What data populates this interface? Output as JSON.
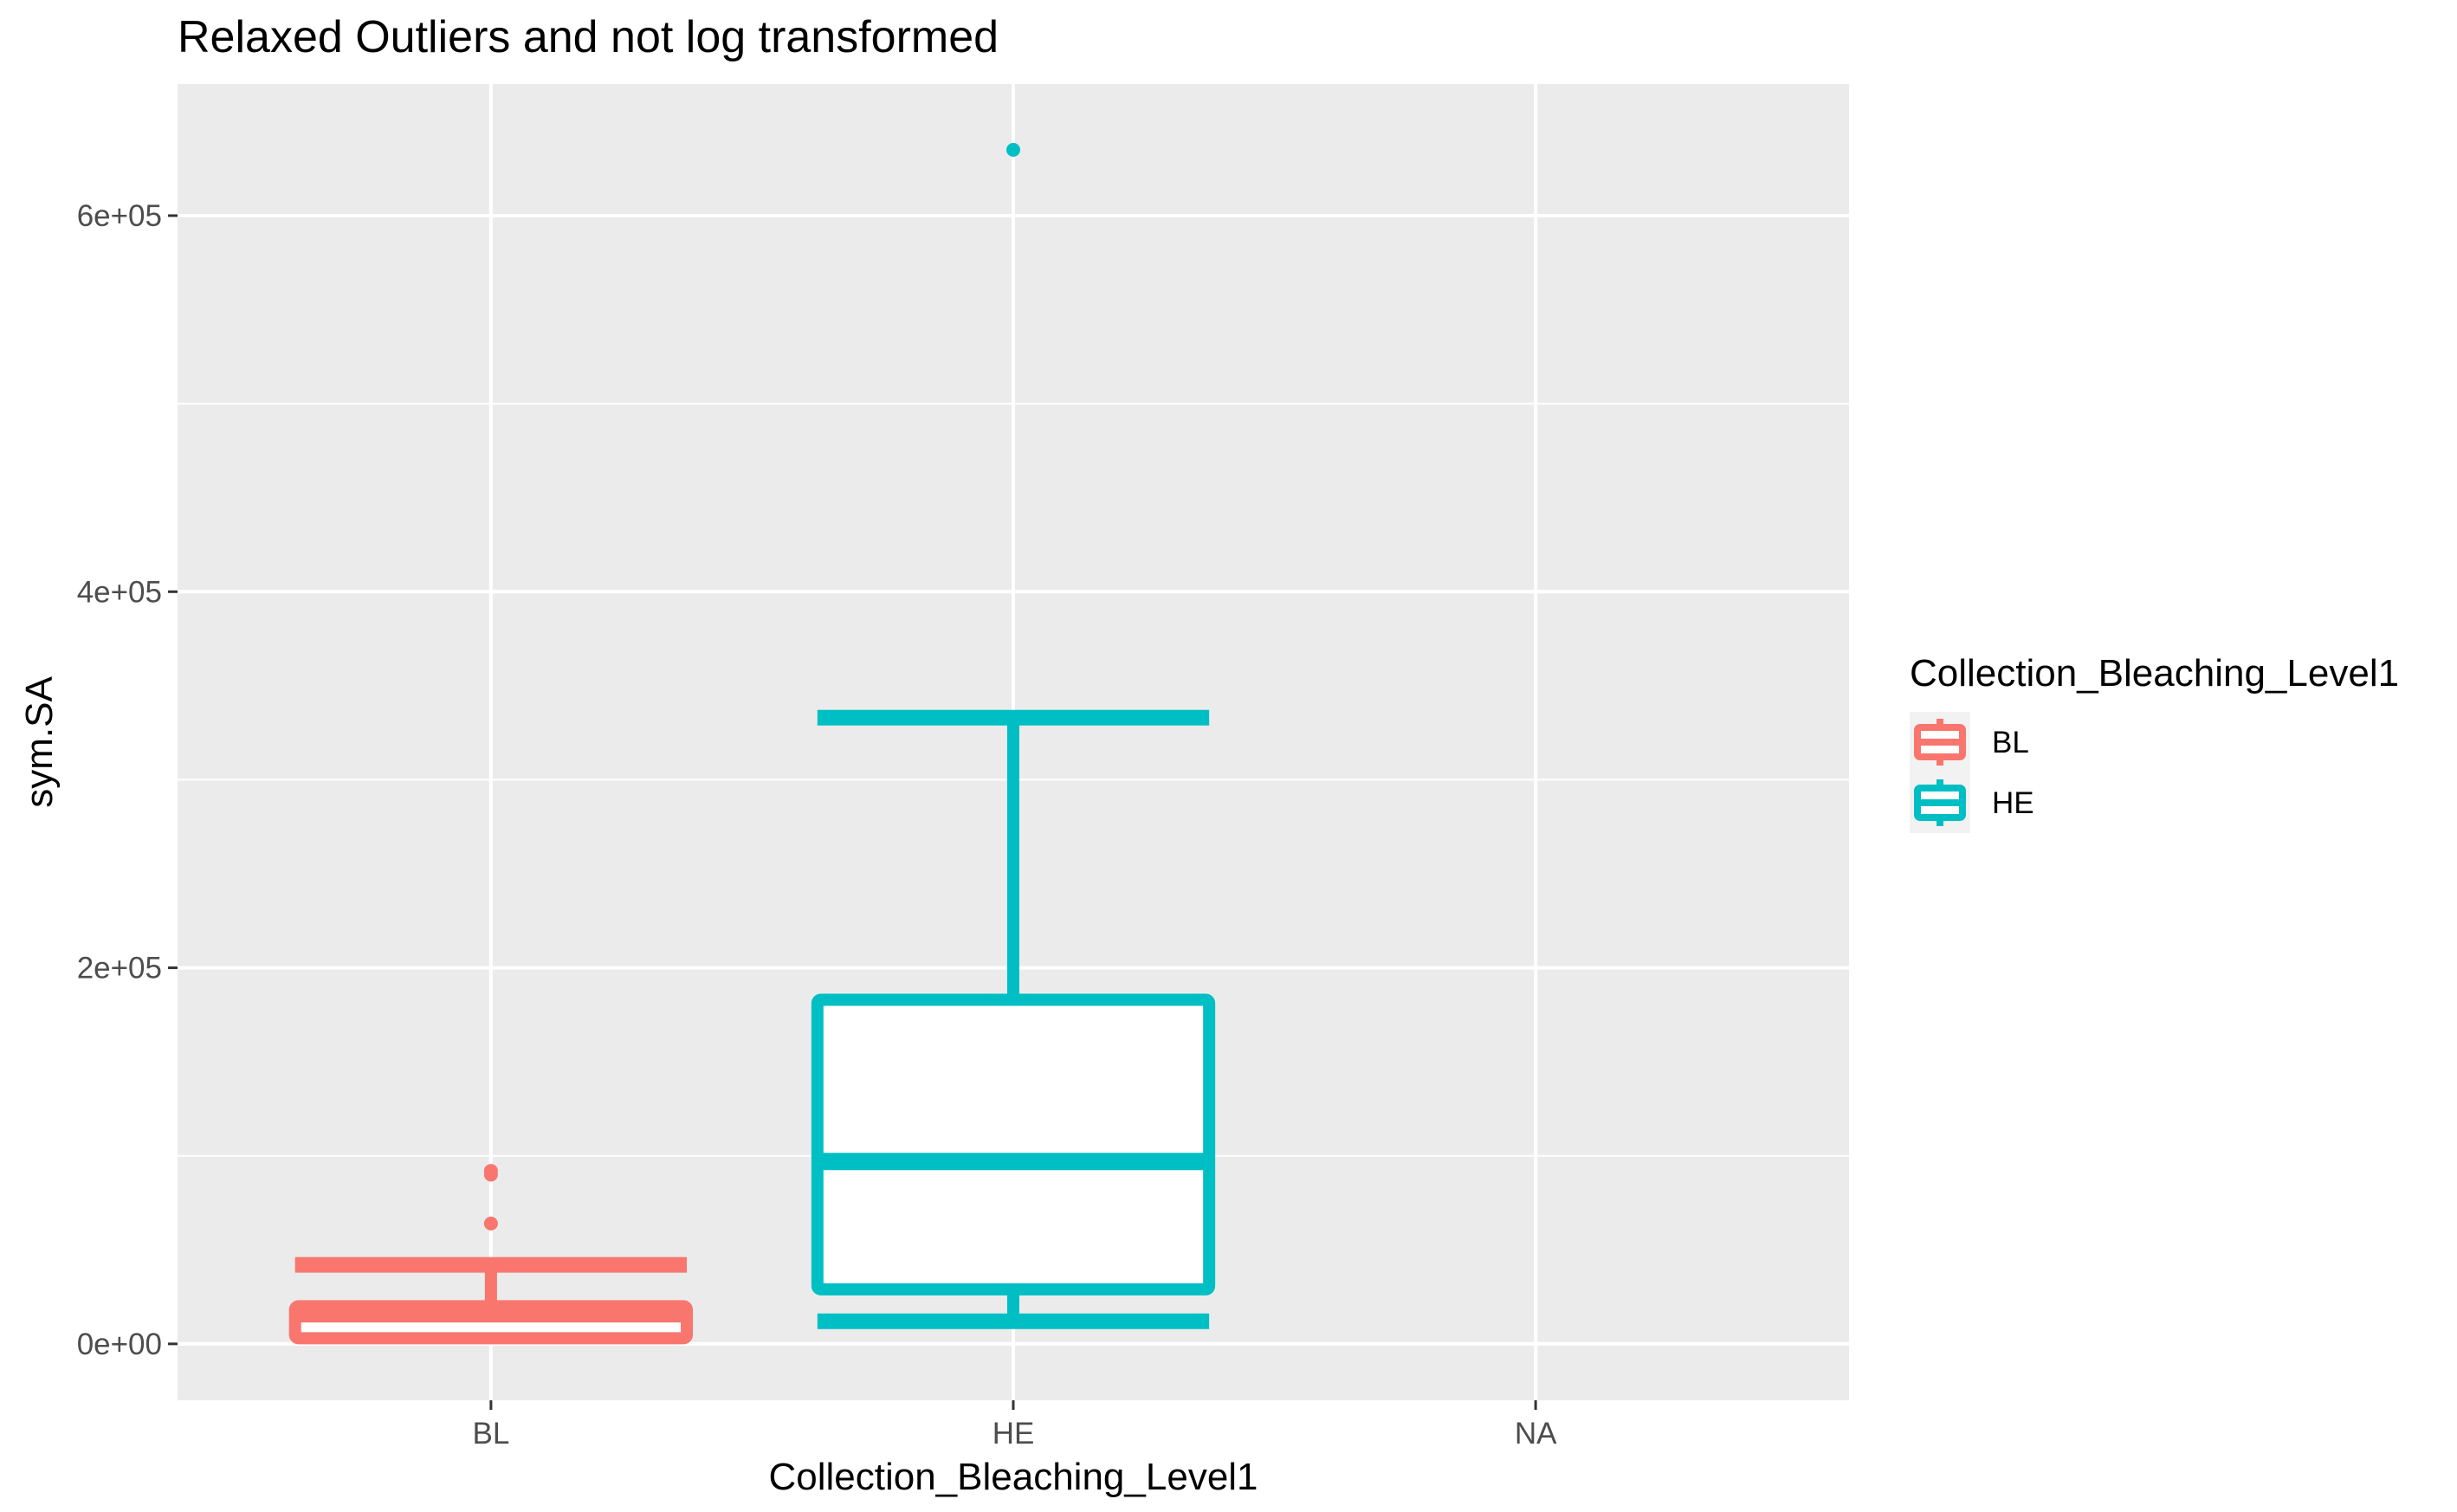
{
  "chart_data": {
    "type": "boxplot",
    "title": "Relaxed Outliers and not log transformed",
    "xlabel": "Collection_Bleaching_Level1",
    "ylabel": "sym.SA",
    "categories": [
      "BL",
      "HE",
      "NA"
    ],
    "ylim": [
      -30000,
      670000
    ],
    "yticks": [
      {
        "value": 0,
        "label": "0e+00"
      },
      {
        "value": 200000,
        "label": "2e+05"
      },
      {
        "value": 400000,
        "label": "4e+05"
      },
      {
        "value": 600000,
        "label": "6e+05"
      }
    ],
    "y_minor_ticks": [
      100000,
      300000,
      500000
    ],
    "grid": true,
    "panel_background": "#ebebeb",
    "series": [
      {
        "name": "BL",
        "category": "BL",
        "color": "#f8766d",
        "min": 0,
        "q1": 3000,
        "median": 16000,
        "q3": 20000,
        "max": 42000,
        "whisker_caps": [
          42000
        ],
        "outliers": [
          64000,
          90000,
          92000
        ]
      },
      {
        "name": "HE",
        "category": "HE",
        "color": "#00bfc4",
        "min": 12000,
        "q1": 29000,
        "median": 97000,
        "q3": 183000,
        "max": 333000,
        "whisker_caps": [
          12000,
          333000
        ],
        "outliers": [
          635000
        ]
      }
    ],
    "legend": {
      "title": "Collection_Bleaching_Level1",
      "placement": "right",
      "entries": [
        {
          "label": "BL",
          "color": "#f8766d"
        },
        {
          "label": "HE",
          "color": "#00bfc4"
        }
      ]
    }
  }
}
